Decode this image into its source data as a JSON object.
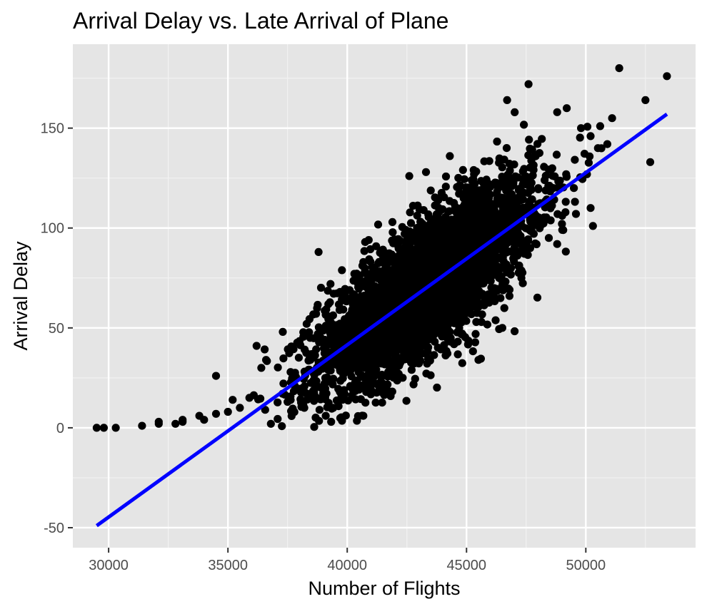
{
  "chart_data": {
    "type": "scatter",
    "title": "Arrival Delay vs. Late Arrival of Plane",
    "xlabel": "Number of Flights",
    "ylabel": "Arrival Delay",
    "xlim": [
      28500,
      54600
    ],
    "ylim": [
      -60,
      192
    ],
    "x_ticks": [
      30000,
      35000,
      40000,
      45000,
      50000
    ],
    "y_ticks": [
      -50,
      0,
      50,
      100,
      150
    ],
    "x_tick_labels": [
      "30000",
      "35000",
      "40000",
      "45000",
      "50000"
    ],
    "y_tick_labels": [
      "-50",
      "0",
      "50",
      "100",
      "150"
    ],
    "grid": true,
    "point_color": "#000000",
    "panel_background": "#e5e5e5",
    "trend_line": {
      "color": "#0000ff",
      "x": [
        29500,
        53400
      ],
      "y": [
        -49,
        157
      ]
    },
    "cloud": {
      "center_x": 43300,
      "center_y": 71,
      "sd_x": 2250,
      "slope": 0.00862,
      "resid_sd": 16,
      "approx_point_count": 4000
    },
    "points": [
      [
        29500,
        0
      ],
      [
        29800,
        0
      ],
      [
        30300,
        0
      ],
      [
        31400,
        1
      ],
      [
        32100,
        2
      ],
      [
        32100,
        3
      ],
      [
        32800,
        2
      ],
      [
        33100,
        3
      ],
      [
        33100,
        4
      ],
      [
        33800,
        6
      ],
      [
        34000,
        4
      ],
      [
        34500,
        7
      ],
      [
        34500,
        26
      ],
      [
        35000,
        8
      ],
      [
        35200,
        14
      ],
      [
        35500,
        10
      ],
      [
        35900,
        15
      ],
      [
        36200,
        41
      ],
      [
        36400,
        30
      ],
      [
        36600,
        34
      ],
      [
        36800,
        2
      ],
      [
        37300,
        48
      ],
      [
        38300,
        52
      ],
      [
        38800,
        88
      ],
      [
        39300,
        72
      ],
      [
        39700,
        68
      ],
      [
        40900,
        94
      ],
      [
        42600,
        126
      ],
      [
        43300,
        128
      ],
      [
        44300,
        136
      ],
      [
        44600,
        108
      ],
      [
        45100,
        114
      ],
      [
        45300,
        118
      ],
      [
        45900,
        118
      ],
      [
        46700,
        164
      ],
      [
        47600,
        172
      ],
      [
        48600,
        120
      ],
      [
        48800,
        158
      ],
      [
        49200,
        160
      ],
      [
        49800,
        150
      ],
      [
        50200,
        146
      ],
      [
        50600,
        151
      ],
      [
        50900,
        142
      ],
      [
        51100,
        155
      ],
      [
        51400,
        180
      ],
      [
        52500,
        164
      ],
      [
        52700,
        133
      ],
      [
        53400,
        176
      ],
      [
        49500,
        120
      ],
      [
        50200,
        110
      ],
      [
        50300,
        101
      ],
      [
        48800,
        92
      ],
      [
        47300,
        75
      ],
      [
        46800,
        66
      ],
      [
        46500,
        50
      ],
      [
        45500,
        34
      ],
      [
        44300,
        48
      ],
      [
        44000,
        60
      ],
      [
        42700,
        29
      ],
      [
        42200,
        25
      ],
      [
        41100,
        30
      ],
      [
        40500,
        20
      ],
      [
        39800,
        14
      ],
      [
        39100,
        6
      ],
      [
        38200,
        10
      ],
      [
        37500,
        13
      ]
    ]
  }
}
